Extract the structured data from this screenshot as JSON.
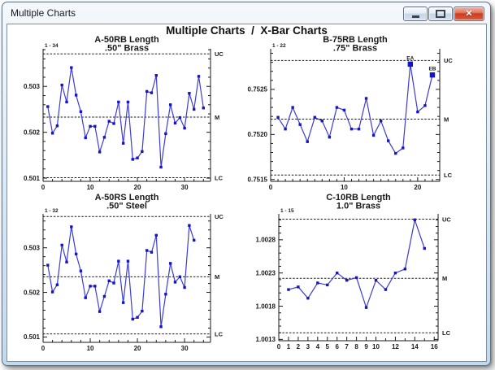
{
  "window": {
    "title": "Multiple Charts",
    "buttons": {
      "minimize": "minimize",
      "maximize": "maximize",
      "close": "close"
    }
  },
  "main_title": "Multiple Charts  /  X-Bar Charts",
  "colors": {
    "line": "#3c3cd8",
    "marker": "#1414c8",
    "axis": "#1a1a1a",
    "text": "#1a1a1a",
    "control_line": "#1a1a1a"
  },
  "chart_data": [
    {
      "type": "line",
      "title": "A-50RB Length",
      "subtitle": ".50\" Brass",
      "range_label": "1 - 34",
      "values": [
        0.50256,
        0.50198,
        0.50214,
        0.50303,
        0.50266,
        0.50341,
        0.50281,
        0.50245,
        0.50188,
        0.50213,
        0.50213,
        0.50157,
        0.50189,
        0.50224,
        0.50219,
        0.50266,
        0.50176,
        0.50266,
        0.50141,
        0.50144,
        0.50158,
        0.50289,
        0.50286,
        0.50324,
        0.50124,
        0.50197,
        0.5026,
        0.5022,
        0.50232,
        0.50209,
        0.50285,
        0.5025,
        0.50322,
        0.50253
      ],
      "xlim": [
        0,
        35.5
      ],
      "ylim": [
        0.50093,
        0.50382
      ],
      "y_ticks": {
        "minor": 0.0002,
        "labels": [
          {
            "v": 0.501,
            "t": "0.501"
          },
          {
            "v": 0.502,
            "t": "0.502"
          },
          {
            "v": 0.503,
            "t": "0.503"
          }
        ]
      },
      "x_ticks": {
        "minor": 2,
        "labels": [
          {
            "v": 0,
            "t": "0"
          },
          {
            "v": 10,
            "t": "10"
          },
          {
            "v": 20,
            "t": "20"
          },
          {
            "v": 30,
            "t": "30"
          }
        ]
      },
      "control_lines": [
        {
          "label": "UC",
          "value": 0.50371
        },
        {
          "label": "M",
          "value": 0.50233
        },
        {
          "label": "LC",
          "value": 0.50101
        }
      ],
      "annotations": []
    },
    {
      "type": "line",
      "title": "B-75RB Length",
      "subtitle": ".75\" Brass",
      "range_label": "1 - 22",
      "values": [
        0.75219,
        0.75206,
        0.7523,
        0.75211,
        0.75192,
        0.75219,
        0.75215,
        0.75197,
        0.7523,
        0.75227,
        0.75206,
        0.75206,
        0.7524,
        0.75199,
        0.75215,
        0.75193,
        0.75179,
        0.75185,
        0.75278,
        0.75225,
        0.75232,
        0.75266
      ],
      "xlim": [
        0,
        23
      ],
      "ylim": [
        0.75148,
        0.75295
      ],
      "y_ticks": {
        "minor": 0.0001,
        "labels": [
          {
            "v": 0.7515,
            "t": "0.7515"
          },
          {
            "v": 0.752,
            "t": "0.7520"
          },
          {
            "v": 0.7525,
            "t": "0.7525"
          }
        ]
      },
      "x_ticks": {
        "minor": 1,
        "labels": [
          {
            "v": 0,
            "t": "0"
          },
          {
            "v": 10,
            "t": "10"
          },
          {
            "v": 20,
            "t": "20"
          }
        ]
      },
      "control_lines": [
        {
          "label": "UC",
          "value": 0.75282
        },
        {
          "label": "M",
          "value": 0.75217
        },
        {
          "label": "LC",
          "value": 0.75155
        }
      ],
      "annotations": [
        {
          "point": 19,
          "label": "EA"
        },
        {
          "point": 22,
          "label": "EB"
        }
      ]
    },
    {
      "type": "line",
      "title": "A-50RS Length",
      "subtitle": ".50\" Steel",
      "range_label": "1 - 32",
      "values": [
        0.50261,
        0.50201,
        0.50217,
        0.50306,
        0.50268,
        0.50347,
        0.50286,
        0.50248,
        0.50188,
        0.50214,
        0.50214,
        0.50157,
        0.50191,
        0.50226,
        0.50221,
        0.5027,
        0.50177,
        0.5027,
        0.5014,
        0.50144,
        0.50158,
        0.50294,
        0.5029,
        0.50328,
        0.50123,
        0.50196,
        0.50265,
        0.50223,
        0.50235,
        0.50211,
        0.5035,
        0.50317
      ],
      "xlim": [
        0,
        35.5
      ],
      "ylim": [
        0.50088,
        0.50376
      ],
      "y_ticks": {
        "minor": 0.0002,
        "labels": [
          {
            "v": 0.501,
            "t": "0.501"
          },
          {
            "v": 0.502,
            "t": "0.502"
          },
          {
            "v": 0.503,
            "t": "0.503"
          }
        ]
      },
      "x_ticks": {
        "minor": 2,
        "labels": [
          {
            "v": 0,
            "t": "0"
          },
          {
            "v": 10,
            "t": "10"
          },
          {
            "v": 20,
            "t": "20"
          },
          {
            "v": 30,
            "t": "30"
          }
        ]
      },
      "control_lines": [
        {
          "label": "UC",
          "value": 0.5037
        },
        {
          "label": "M",
          "value": 0.50235
        },
        {
          "label": "LC",
          "value": 0.50107
        }
      ],
      "annotations": []
    },
    {
      "type": "line",
      "title": "C-10RB Length",
      "subtitle": "1.0\" Brass",
      "range_label": "1 - 15",
      "values": [
        1.00205,
        1.00209,
        1.00192,
        1.00215,
        1.00212,
        1.0023,
        1.00219,
        1.00223,
        1.00178,
        1.00219,
        1.00205,
        1.0023,
        1.00236,
        1.0031,
        1.00267
      ],
      "xlim": [
        0,
        16.4
      ],
      "ylim": [
        1.00128,
        1.00319
      ],
      "y_ticks": {
        "minor": 0.0001,
        "labels": [
          {
            "v": 1.0013,
            "t": "1.0013"
          },
          {
            "v": 1.0018,
            "t": "1.0018"
          },
          {
            "v": 1.0023,
            "t": "1.0023"
          },
          {
            "v": 1.0028,
            "t": "1.0028"
          }
        ]
      },
      "x_ticks": {
        "minor": 1,
        "labels": [
          {
            "v": 0,
            "t": "0"
          },
          {
            "v": 1,
            "t": "1"
          },
          {
            "v": 2,
            "t": "2"
          },
          {
            "v": 3,
            "t": "3"
          },
          {
            "v": 4,
            "t": "4"
          },
          {
            "v": 5,
            "t": "5"
          },
          {
            "v": 6,
            "t": "6"
          },
          {
            "v": 7,
            "t": "7"
          },
          {
            "v": 8,
            "t": "8"
          },
          {
            "v": 9,
            "t": "9"
          },
          {
            "v": 10,
            "t": "10"
          },
          {
            "v": 12,
            "t": "12"
          },
          {
            "v": 14,
            "t": "14"
          },
          {
            "v": 16,
            "t": "16"
          }
        ]
      },
      "control_lines": [
        {
          "label": "UC",
          "value": 1.00311
        },
        {
          "label": "M",
          "value": 1.00222
        },
        {
          "label": "LC",
          "value": 1.0014
        }
      ],
      "annotations": []
    }
  ]
}
